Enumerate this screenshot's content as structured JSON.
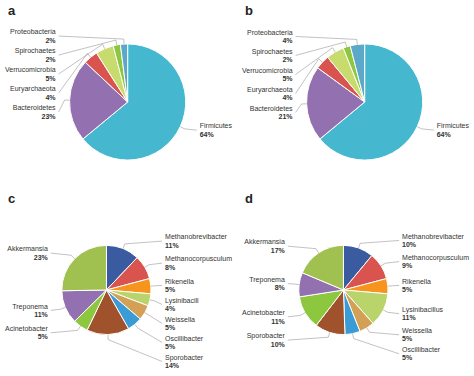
{
  "chart_data": [
    {
      "type": "pie",
      "title": "a",
      "categories": [
        "Firmicutes",
        "Bacteroidetes",
        "Euryarchaeota",
        "Verrucomicrobia",
        "Spirochaetes",
        "Proteobacteria"
      ],
      "values": [
        64,
        23,
        4,
        5,
        2,
        2
      ],
      "value_labels": [
        "64%",
        "23%",
        "4%",
        "5%",
        "2%",
        "2%"
      ],
      "colors": [
        "#45b8d0",
        "#9370b0",
        "#d9534f",
        "#c8dc6e",
        "#8dc63f",
        "#5ba8c8"
      ],
      "data_labels": true
    },
    {
      "type": "pie",
      "title": "b",
      "categories": [
        "Firmicutes",
        "Bacteroidetes",
        "Euryarchaeota",
        "Verrucomicrobia",
        "Spirochaetes",
        "Proteobacteria"
      ],
      "values": [
        64,
        21,
        4,
        5,
        2,
        4
      ],
      "value_labels": [
        "64%",
        "21%",
        "4%",
        "5%",
        "2%",
        "4%"
      ],
      "colors": [
        "#45b8d0",
        "#9370b0",
        "#d9534f",
        "#c8dc6e",
        "#8dc63f",
        "#5ba8c8"
      ],
      "data_labels": true
    },
    {
      "type": "pie",
      "title": "c",
      "categories": [
        "Methanobrevibacter",
        "Methanocorpusculum",
        "Rikenella",
        "Lysinibacill",
        "Weissella",
        "Oscillibacter",
        "Sporobacter",
        "Acinetobacter",
        "Treponema",
        "Akkermansia"
      ],
      "values": [
        11,
        8,
        5,
        4,
        5,
        5,
        14,
        5,
        11,
        23
      ],
      "value_labels": [
        "11%",
        "8%",
        "5%",
        "4%",
        "5%",
        "5%",
        "14%",
        "5%",
        "11%",
        "23%"
      ],
      "colors": [
        "#3a5ba0",
        "#d9534f",
        "#f7941d",
        "#b8d46b",
        "#d4a056",
        "#3a9bd5",
        "#a0522d",
        "#8dc63f",
        "#9370b0",
        "#a0c050"
      ],
      "data_labels": true
    },
    {
      "type": "pie",
      "title": "d",
      "categories": [
        "Methanobrevibacter",
        "Methanocorpusculum",
        "Rikenella",
        "Lysinibacillus",
        "Weissella",
        "Oscillibacter",
        "Sporobacter",
        "Acinetobacter",
        "Treponema",
        "Akkermansia"
      ],
      "values": [
        10,
        9,
        5,
        11,
        5,
        5,
        10,
        11,
        8,
        17
      ],
      "value_labels": [
        "10%",
        "9%",
        "5%",
        "11%",
        "5%",
        "5%",
        "10%",
        "11%",
        "8%",
        "17%"
      ],
      "colors": [
        "#3a5ba0",
        "#d9534f",
        "#f7941d",
        "#b8d46b",
        "#d4a056",
        "#3a9bd5",
        "#a0522d",
        "#8dc63f",
        "#9370b0",
        "#a0c050"
      ],
      "data_labels": true
    }
  ]
}
